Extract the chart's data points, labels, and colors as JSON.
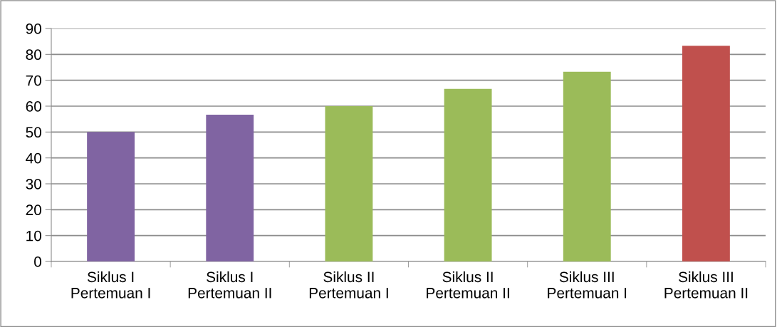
{
  "chart_data": {
    "type": "bar",
    "categories": [
      "Siklus I\nPertemuan I",
      "Siklus I\nPertemuan II",
      "Siklus II\nPertemuan I",
      "Siklus II\nPertemuan II",
      "Siklus III\nPertemuan I",
      "Siklus III\nPertemuan II"
    ],
    "values": [
      50,
      56.7,
      60,
      66.7,
      73.3,
      83.3
    ],
    "colors": [
      "#8064a2",
      "#8064a2",
      "#9bbb59",
      "#9bbb59",
      "#9bbb59",
      "#c0504d"
    ],
    "ylim": [
      0,
      90
    ],
    "yticks": [
      0,
      10,
      20,
      30,
      40,
      50,
      60,
      70,
      80,
      90
    ],
    "grid": "y",
    "legend": false
  }
}
